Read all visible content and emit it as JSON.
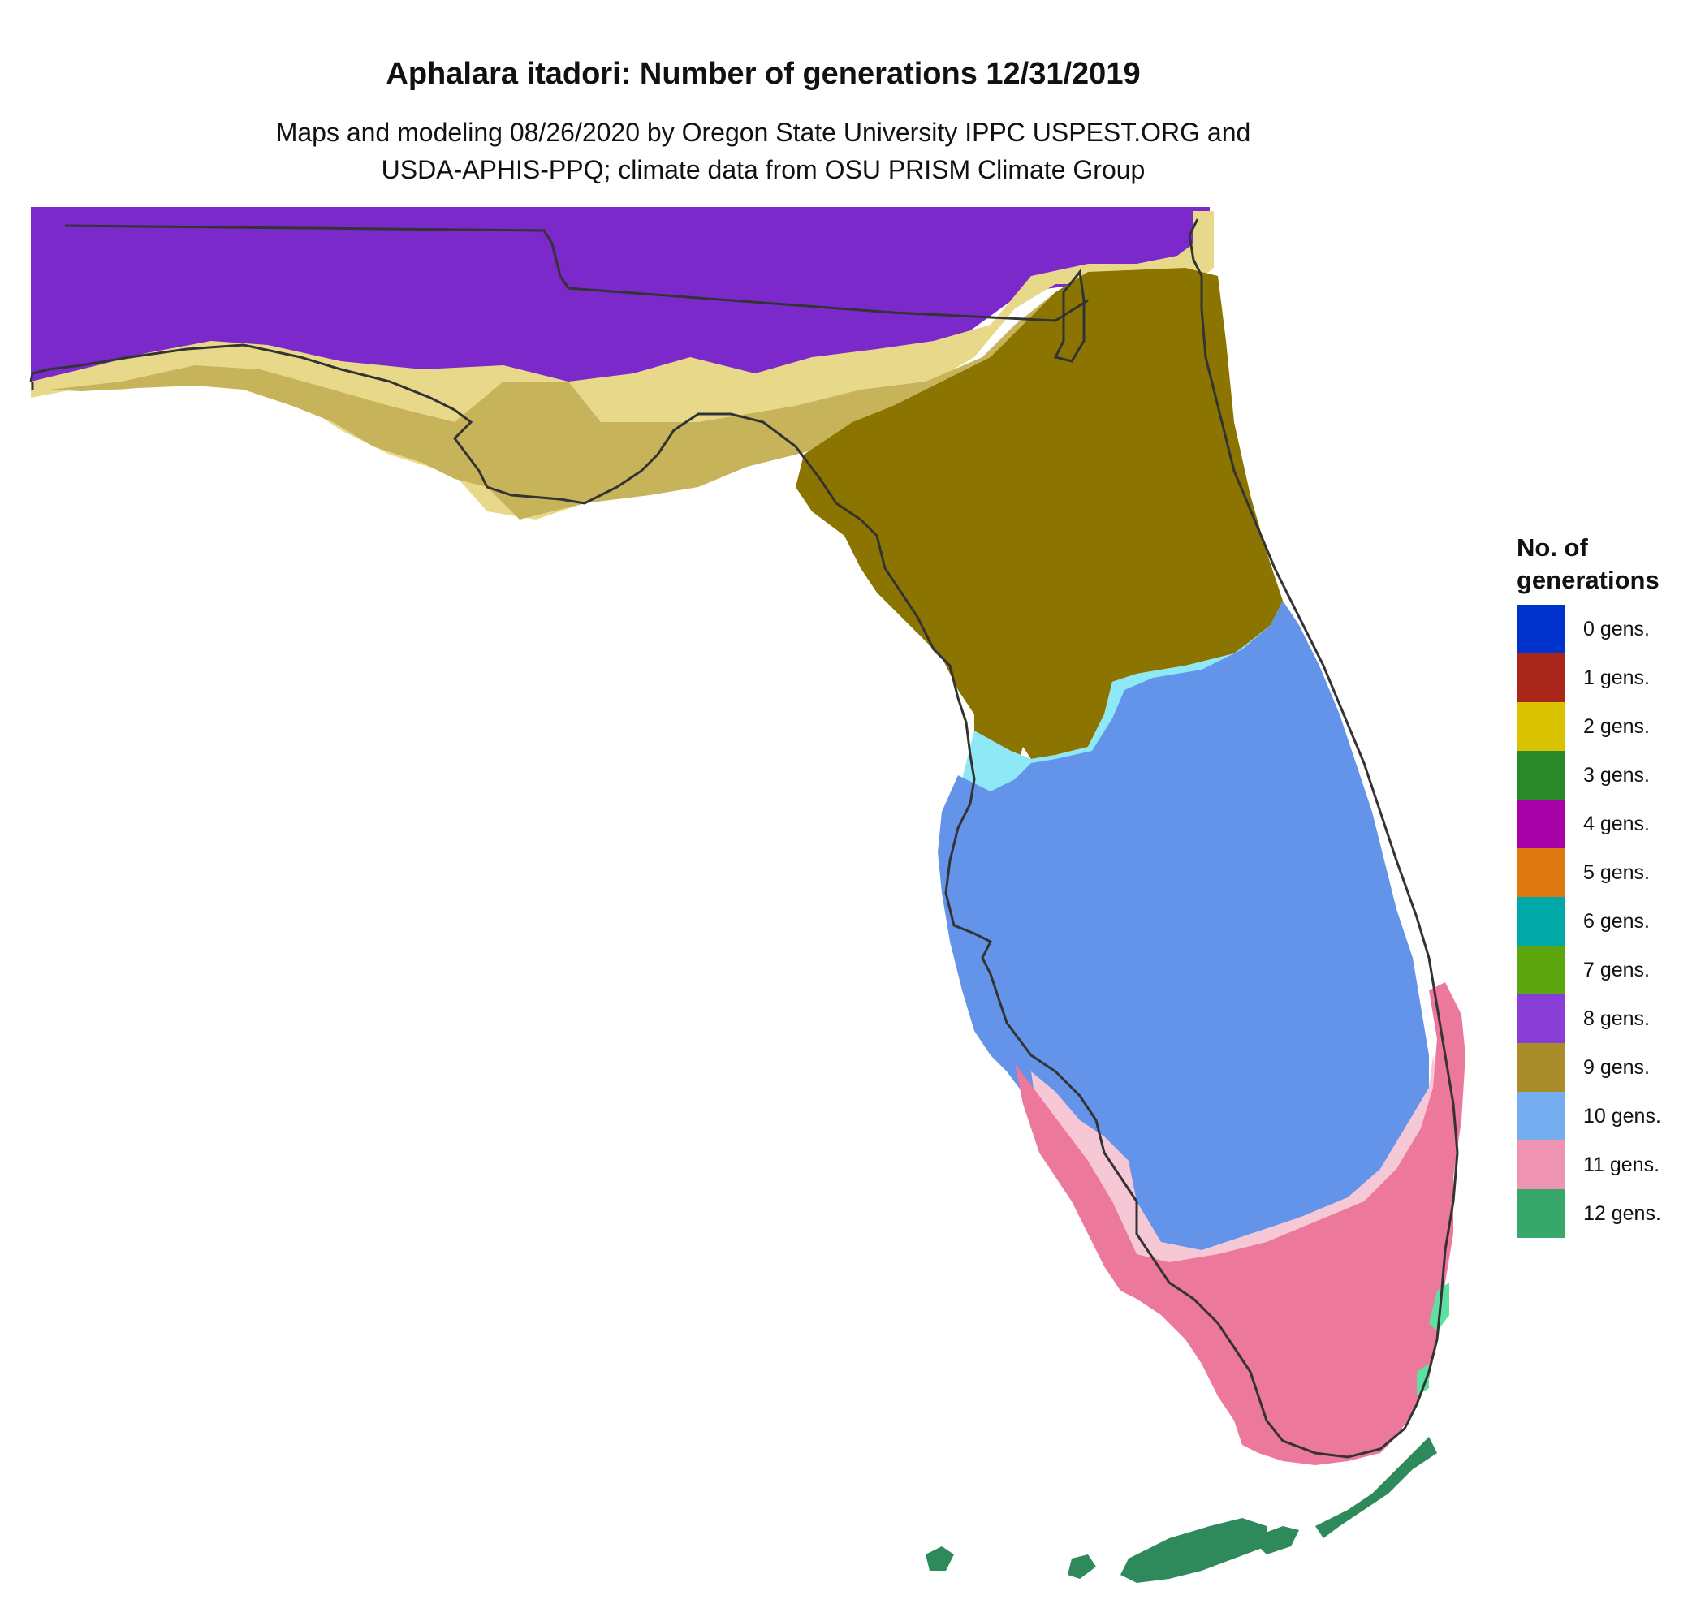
{
  "map": {
    "title": "Aphalara itadori: Number of generations 12/31/2019",
    "subtitle_line1": "Maps and modeling 08/26/2020 by Oregon State University IPPC USPEST.ORG and",
    "subtitle_line2": "USDA-APHIS-PPQ; climate data from OSU PRISM Climate Group",
    "region": "Florida",
    "zone_colors": {
      "eight_gens": "#7c29cc",
      "nine_gens_light": "#e8d98a",
      "nine_gens_mid": "#c7b45a",
      "nine_gens_dark": "#8b7500",
      "ten_gens_edge": "#8ee8f5",
      "ten_gens": "#6494ea",
      "eleven_gens_edge": "#f6c8d6",
      "eleven_gens": "#ec789c",
      "twelve_gens_edge": "#5ee0a0",
      "twelve_gens": "#2e8a5a",
      "outline": "#333333"
    }
  },
  "legend": {
    "title_line1": "No. of",
    "title_line2": "generations",
    "items": [
      {
        "label": "0 gens.",
        "color": "#0033cc"
      },
      {
        "label": "1 gens.",
        "color": "#a8261a"
      },
      {
        "label": "2 gens.",
        "color": "#d9c200"
      },
      {
        "label": "3 gens.",
        "color": "#2a8a2a"
      },
      {
        "label": "4 gens.",
        "color": "#a600a6"
      },
      {
        "label": "5 gens.",
        "color": "#e07a10"
      },
      {
        "label": "6 gens.",
        "color": "#00a8a8"
      },
      {
        "label": "7 gens.",
        "color": "#5ea60e"
      },
      {
        "label": "8 gens.",
        "color": "#8a3ed8"
      },
      {
        "label": "9 gens.",
        "color": "#a88d2a"
      },
      {
        "label": "10 gens.",
        "color": "#74adf0"
      },
      {
        "label": "11 gens.",
        "color": "#ee94b2"
      },
      {
        "label": "12 gens.",
        "color": "#38a76c"
      }
    ]
  }
}
